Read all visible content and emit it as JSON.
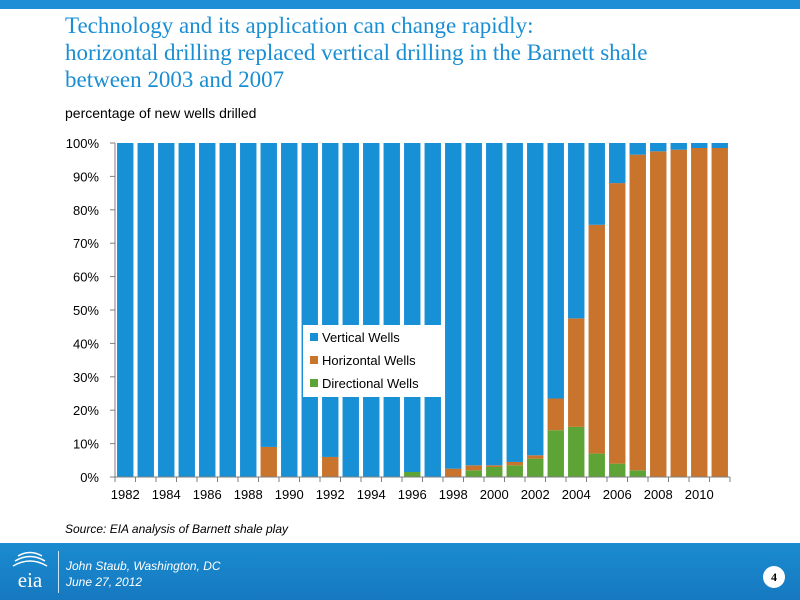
{
  "title_lines": [
    "Technology and its application can change rapidly:",
    "horizontal drilling replaced vertical drilling in the Barnett shale",
    "between 2003 and 2007"
  ],
  "source_note": "Source: EIA analysis of Barnett shale play",
  "footer": {
    "logo_text": "eia",
    "presenter": "John  Staub,  Washington, DC",
    "date": "June 27, 2012",
    "page_number": "4"
  },
  "colors": {
    "Vertical Wells": "#1890d5",
    "Horizontal Wells": "#c8742d",
    "Directional Wells": "#5ea336",
    "title": "#1a8ed3"
  },
  "chart_data": {
    "type": "bar",
    "stacked": true,
    "title": "",
    "ylabel": "percentage of new wells drilled",
    "xlabel": "",
    "ylim": [
      0,
      100
    ],
    "y_ticks": [
      "0%",
      "10%",
      "20%",
      "30%",
      "40%",
      "50%",
      "60%",
      "70%",
      "80%",
      "90%",
      "100%"
    ],
    "x_tick_labels": [
      "1982",
      "1984",
      "1986",
      "1988",
      "1990",
      "1992",
      "1994",
      "1996",
      "1998",
      "2000",
      "2002",
      "2004",
      "2006",
      "2008",
      "2010"
    ],
    "grid": false,
    "legend_position": "center",
    "categories": [
      "1982",
      "1983",
      "1984",
      "1985",
      "1986",
      "1987",
      "1988",
      "1989",
      "1990",
      "1991",
      "1992",
      "1993",
      "1994",
      "1995",
      "1996",
      "1997",
      "1998",
      "1999",
      "2000",
      "2001",
      "2002",
      "2003",
      "2004",
      "2005",
      "2006",
      "2007",
      "2008",
      "2009",
      "2010",
      "2011"
    ],
    "series": [
      {
        "name": "Directional Wells",
        "values": [
          0,
          0,
          0,
          0,
          0,
          0,
          0,
          0,
          0,
          0,
          0,
          0,
          0,
          0,
          1.5,
          0,
          0,
          2,
          3,
          3.5,
          5.5,
          14,
          15,
          7,
          4,
          2,
          0,
          0,
          0,
          0
        ]
      },
      {
        "name": "Horizontal Wells",
        "values": [
          0,
          0,
          0,
          0,
          0,
          0,
          0,
          9,
          0,
          0,
          6,
          0,
          0,
          0,
          0,
          0,
          2.5,
          1.5,
          0.5,
          1,
          1,
          9.5,
          32.5,
          68.5,
          84,
          94.5,
          97.5,
          98,
          98.5,
          98.5
        ]
      },
      {
        "name": "Vertical Wells",
        "values": [
          100,
          100,
          100,
          100,
          100,
          100,
          100,
          91,
          100,
          100,
          94,
          100,
          100,
          100,
          98.5,
          100,
          97.5,
          96.5,
          96.5,
          95.5,
          93.5,
          76.5,
          52.5,
          24.5,
          12,
          3.5,
          2.5,
          2,
          1.5,
          1.5
        ]
      }
    ],
    "legend_order": [
      "Vertical Wells",
      "Horizontal Wells",
      "Directional Wells"
    ]
  }
}
